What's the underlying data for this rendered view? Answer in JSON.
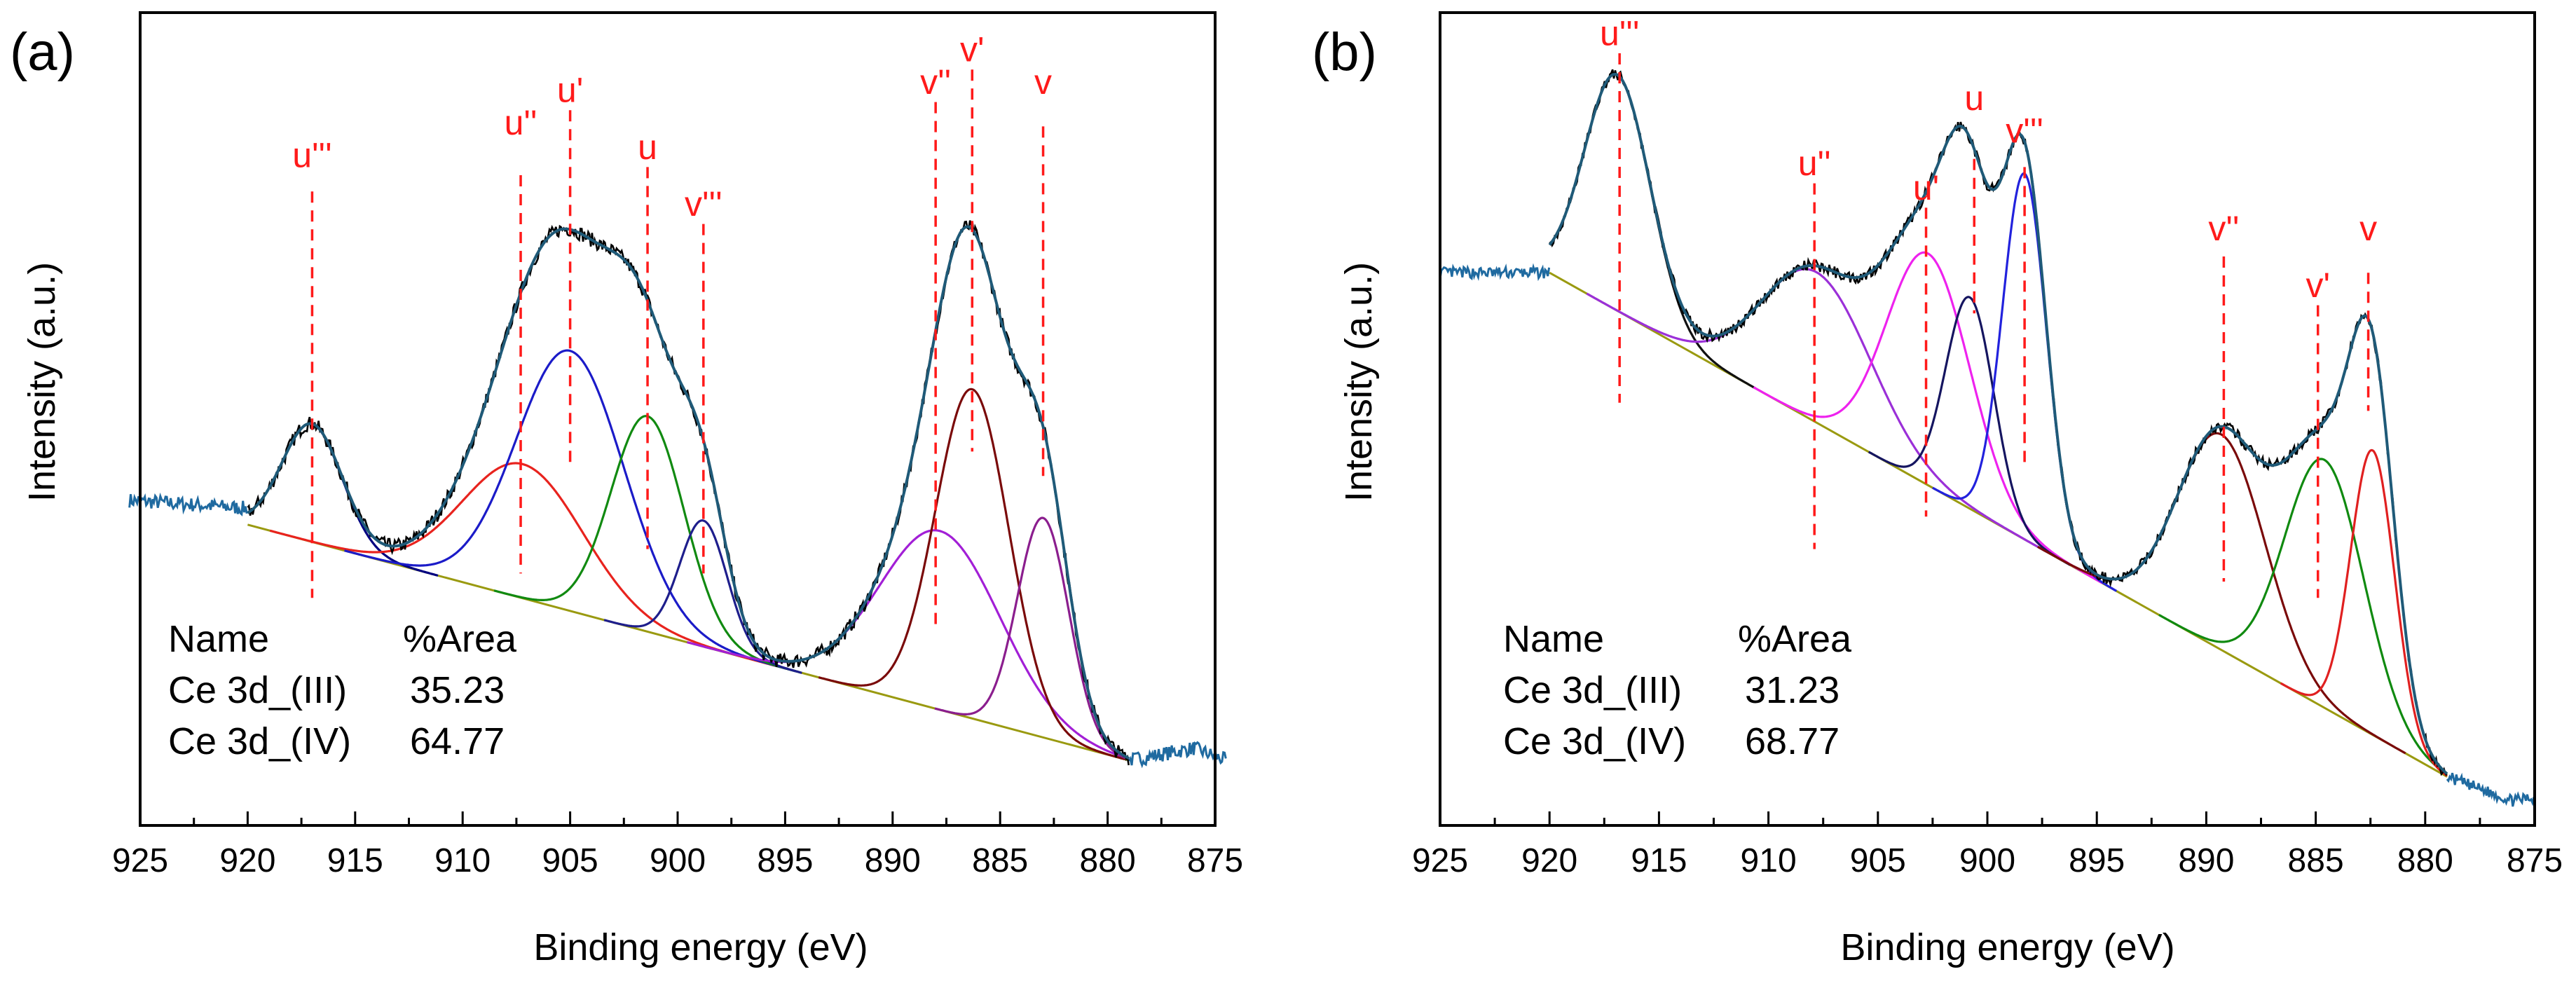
{
  "chart_data": [
    {
      "panel_label": "(a)",
      "type": "line",
      "xlabel": "Binding energy (eV)",
      "ylabel": "Intensity (a.u.)",
      "xlim": [
        925,
        875
      ],
      "ylim": [
        0,
        100
      ],
      "x_ticks": [
        925,
        920,
        915,
        910,
        905,
        900,
        895,
        890,
        885,
        880,
        875
      ],
      "baseline": {
        "start": [
          920,
          37
        ],
        "end": [
          879,
          8
        ]
      },
      "measured_left": [
        [
          925.5,
          40
        ],
        [
          920,
          39
        ]
      ],
      "measured_right": [
        [
          879,
          8
        ],
        [
          876,
          9.5
        ],
        [
          874.5,
          8
        ]
      ],
      "noise": 0.9,
      "components": [
        {
          "name": "u'''",
          "color": "#000080",
          "center": 917.0,
          "height": 14.5,
          "width": 1.4
        },
        {
          "name": "u''",
          "color": "#e8231e",
          "center": 907.2,
          "height": 16.5,
          "width": 2.8
        },
        {
          "name": "u'",
          "color": "#1b1bc8",
          "center": 905.0,
          "height": 32.0,
          "width": 2.5
        },
        {
          "name": "u",
          "color": "#118a11",
          "center": 901.4,
          "height": 26.5,
          "width": 1.7
        },
        {
          "name": "v'''",
          "color": "#1e1e8c",
          "center": 898.8,
          "height": 15.5,
          "width": 1.1
        },
        {
          "name": "v''",
          "color": "#a21fd6",
          "center": 887.8,
          "height": 22.0,
          "width": 2.8
        },
        {
          "name": "v'",
          "color": "#7a0a0a",
          "center": 886.3,
          "height": 40.5,
          "width": 1.7
        },
        {
          "name": "v",
          "color": "#8b1e8e",
          "center": 883.0,
          "height": 27.0,
          "width": 1.2
        }
      ],
      "peak_labels": [
        {
          "name": "u'''",
          "x": 917.0,
          "line_top": 78,
          "line_bottom": 28,
          "label_y": 81
        },
        {
          "name": "u''",
          "x": 907.3,
          "line_top": 80,
          "line_bottom": 31,
          "label_y": 85
        },
        {
          "name": "u'",
          "x": 905.0,
          "line_top": 88,
          "line_bottom": 44,
          "label_y": 89
        },
        {
          "name": "u",
          "x": 901.4,
          "line_top": 81,
          "line_bottom": 34,
          "label_y": 82
        },
        {
          "name": "v'''",
          "x": 898.8,
          "line_top": 74,
          "line_bottom": 31,
          "label_y": 75
        },
        {
          "name": "v''",
          "x": 888.0,
          "line_top": 89,
          "line_bottom": 24,
          "label_y": 90
        },
        {
          "name": "v'",
          "x": 886.3,
          "line_top": 93,
          "line_bottom": 46,
          "label_y": 94
        },
        {
          "name": "v",
          "x": 883.0,
          "line_top": 86,
          "line_bottom": 43,
          "label_y": 90
        }
      ],
      "table": {
        "header": [
          "Name",
          "%Area"
        ],
        "rows": [
          [
            "Ce 3d_(III)",
            "35.23"
          ],
          [
            "Ce 3d_(IV)",
            "64.77"
          ]
        ]
      }
    },
    {
      "panel_label": "(b)",
      "type": "line",
      "xlabel": "Binding energy (eV)",
      "ylabel": "Intensity (a.u.)",
      "xlim": [
        925,
        875
      ],
      "ylim": [
        0,
        100
      ],
      "x_ticks": [
        925,
        920,
        915,
        910,
        905,
        900,
        895,
        890,
        885,
        880,
        875
      ],
      "baseline": {
        "start": [
          920,
          68
        ],
        "end": [
          879,
          6
        ]
      },
      "measured_left": [
        [
          925,
          68
        ],
        [
          920,
          68
        ]
      ],
      "measured_right": [
        [
          879,
          6
        ],
        [
          876,
          3
        ],
        [
          875,
          3.5
        ]
      ],
      "noise": 0.7,
      "components": [
        {
          "name": "u'''",
          "color": "#111111",
          "center": 916.9,
          "height": 29.0,
          "width": 1.5
        },
        {
          "name": "u''",
          "color": "#9b30d8",
          "center": 907.8,
          "height": 18.5,
          "width": 2.5
        },
        {
          "name": "u'",
          "color": "#ee22ee",
          "center": 902.7,
          "height": 28.5,
          "width": 1.9
        },
        {
          "name": "u",
          "color": "#151560",
          "center": 900.8,
          "height": 26.0,
          "width": 1.1
        },
        {
          "name": "v'''",
          "color": "#2222dd",
          "center": 898.3,
          "height": 45.0,
          "width": 1.0
        },
        {
          "name": "v''",
          "color": "#7a0a0a",
          "center": 889.3,
          "height": 26.5,
          "width": 2.0
        },
        {
          "name": "v'",
          "color": "#108a10",
          "center": 884.6,
          "height": 30.5,
          "width": 1.8
        },
        {
          "name": "v",
          "color": "#e02020",
          "center": 882.4,
          "height": 35.0,
          "width": 1.0
        }
      ],
      "peak_labels": [
        {
          "name": "u'''",
          "x": 916.8,
          "line_top": 95,
          "line_bottom": 52,
          "label_y": 96
        },
        {
          "name": "u''",
          "x": 907.9,
          "line_top": 79,
          "line_bottom": 34,
          "label_y": 80
        },
        {
          "name": "u'",
          "x": 902.8,
          "line_top": 76,
          "line_bottom": 38,
          "label_y": 77
        },
        {
          "name": "u",
          "x": 900.6,
          "line_top": 82,
          "line_bottom": 63,
          "label_y": 88
        },
        {
          "name": "v'''",
          "x": 898.3,
          "line_top": 81,
          "line_bottom": 44,
          "label_y": 84
        },
        {
          "name": "v''",
          "x": 889.2,
          "line_top": 70,
          "line_bottom": 30,
          "label_y": 72
        },
        {
          "name": "v'",
          "x": 884.9,
          "line_top": 64,
          "line_bottom": 28,
          "label_y": 65
        },
        {
          "name": "v",
          "x": 882.6,
          "line_top": 68,
          "line_bottom": 51,
          "label_y": 72
        }
      ],
      "table": {
        "header": [
          "Name",
          "%Area"
        ],
        "rows": [
          [
            "Ce 3d_(III)",
            "31.23"
          ],
          [
            "Ce 3d_(IV)",
            "68.77"
          ]
        ]
      }
    }
  ],
  "colors": {
    "raw_data": "#000000",
    "envelope": "#1f5a78",
    "background": "#9a9a10",
    "measured_tails": "#1f6aa0",
    "marker": "#ff1a1a",
    "frame": "#000000"
  }
}
